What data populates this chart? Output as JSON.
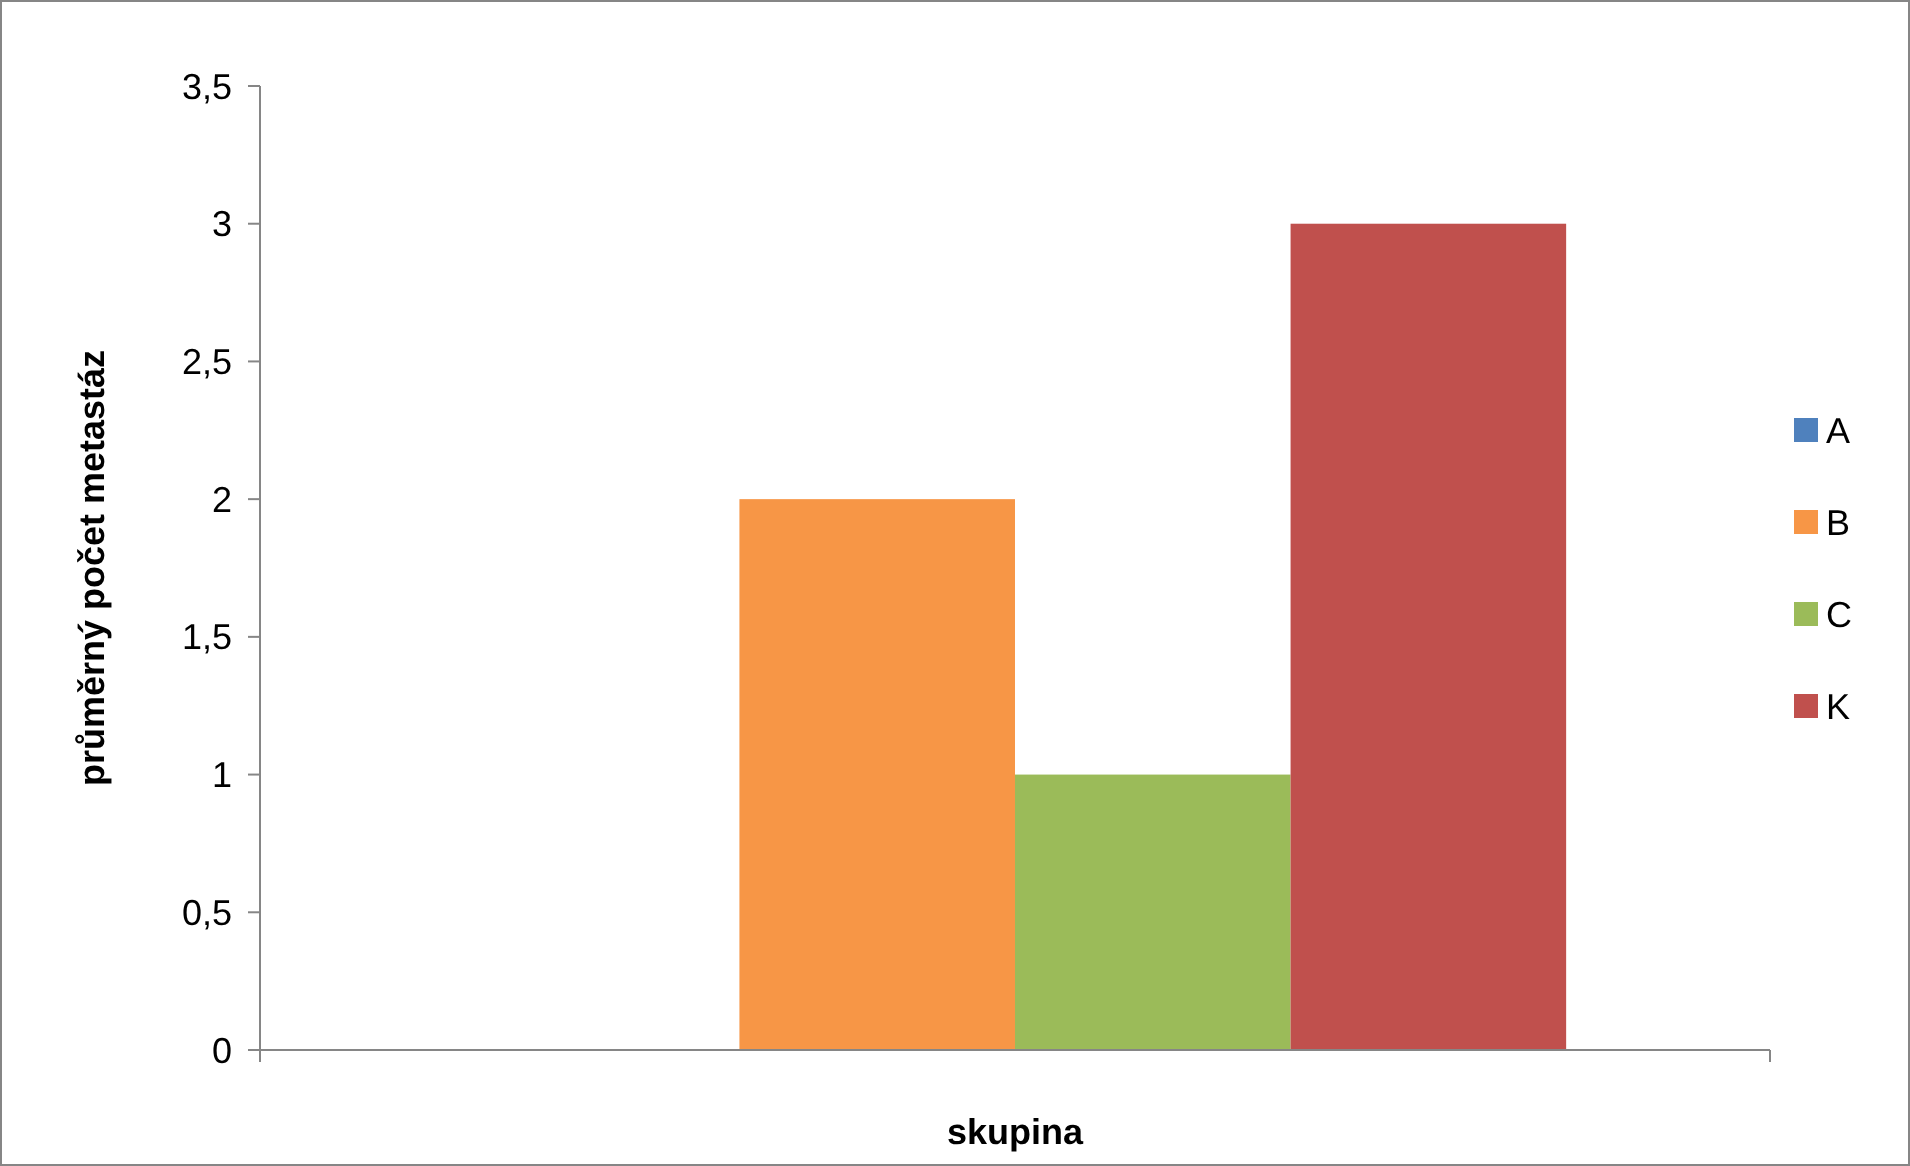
{
  "chart_data": {
    "type": "bar",
    "xlabel": "skupina",
    "ylabel": "průměrný počet metastáz",
    "categories": [
      null
    ],
    "series": [
      {
        "name": "A",
        "color": "#4f81bd",
        "values": [
          0
        ]
      },
      {
        "name": "B",
        "color": "#f79646",
        "values": [
          2
        ]
      },
      {
        "name": "C",
        "color": "#9bbb59",
        "values": [
          1
        ]
      },
      {
        "name": "K",
        "color": "#c0504d",
        "values": [
          3
        ]
      }
    ],
    "ylim": [
      0,
      3.5
    ],
    "yticks": [
      0,
      {
        "value": 0.5,
        "label": "0,5"
      },
      1,
      {
        "value": 1.5,
        "label": "1,5"
      },
      2,
      {
        "value": 2.5,
        "label": "2,5"
      },
      3,
      {
        "value": 3.5,
        "label": "3,5"
      }
    ],
    "grid": false,
    "legend": "right"
  }
}
